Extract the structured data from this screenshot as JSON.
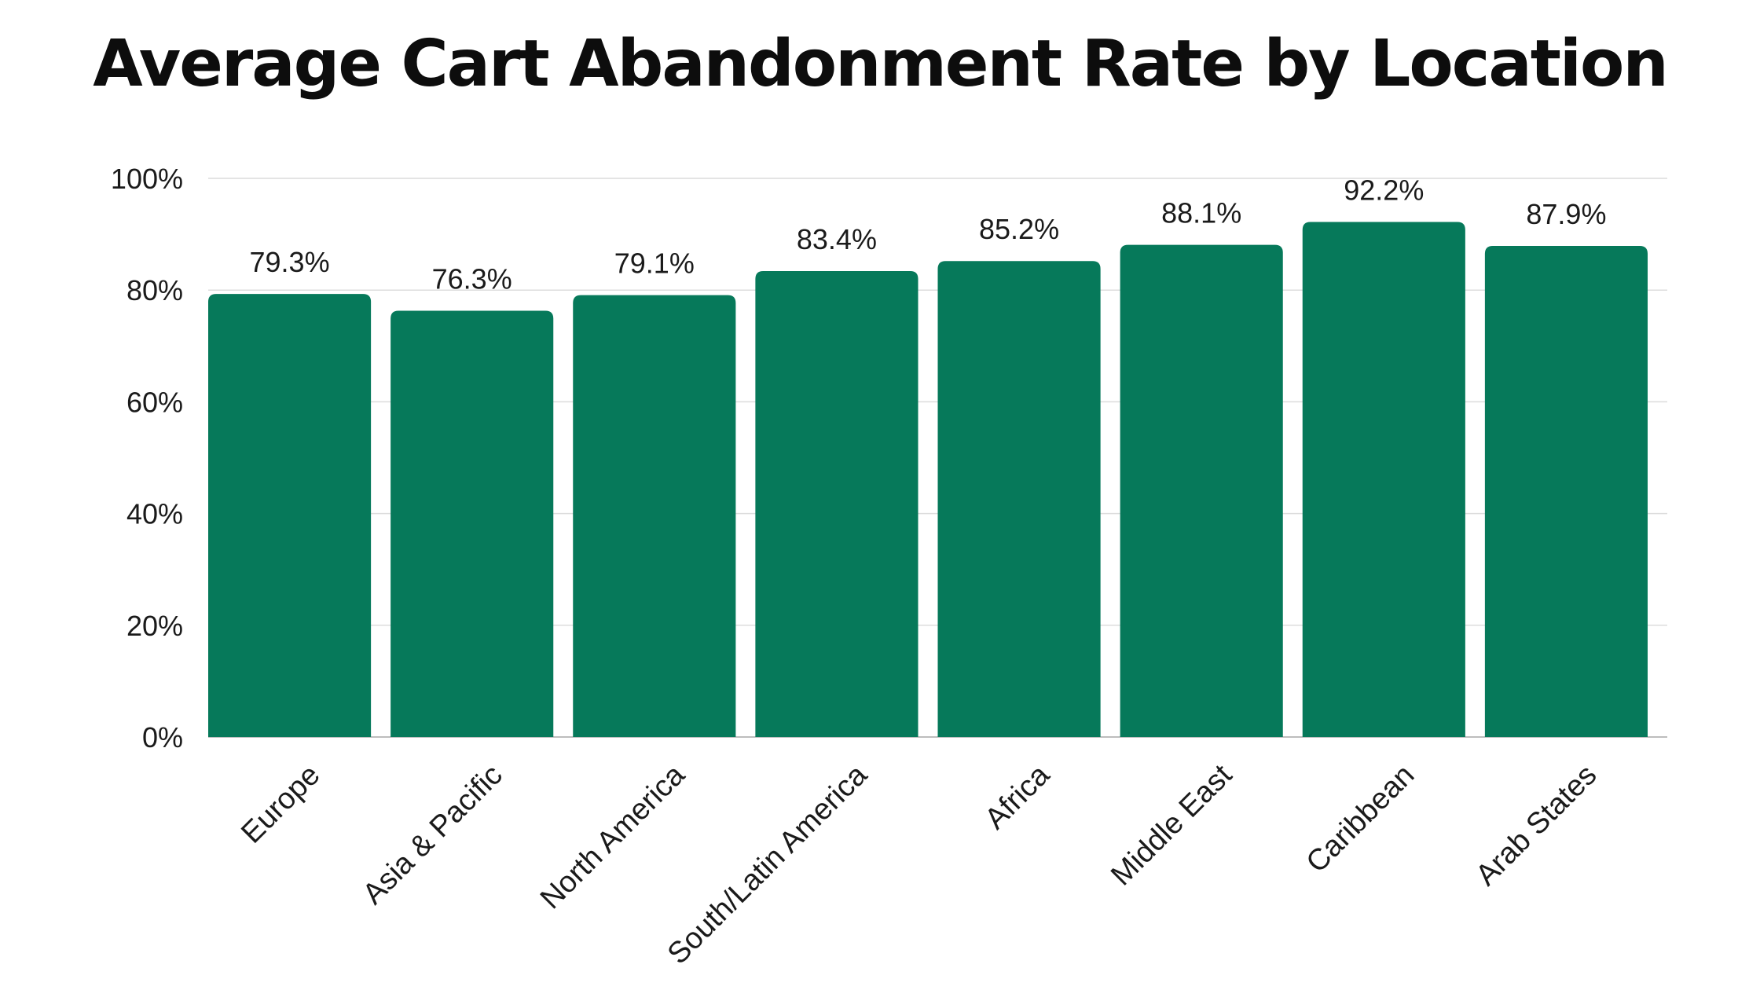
{
  "chart_data": {
    "type": "bar",
    "title": "Average Cart Abandonment Rate by Location",
    "categories": [
      "Europe",
      "Asia & Pacific",
      "North America",
      "South/Latin America",
      "Africa",
      "Middle East",
      "Caribbean",
      "Arab States"
    ],
    "values": [
      79.3,
      76.3,
      79.1,
      83.4,
      85.2,
      88.1,
      92.2,
      87.9
    ],
    "data_labels": [
      "79.3%",
      "76.3%",
      "79.1%",
      "83.4%",
      "85.2%",
      "88.1%",
      "92.2%",
      "87.9%"
    ],
    "y_ticks": [
      0,
      20,
      40,
      60,
      80,
      100
    ],
    "y_tick_labels": [
      "0%",
      "20%",
      "40%",
      "60%",
      "80%",
      "100%"
    ],
    "ylim": [
      0,
      100
    ],
    "xlabel": "",
    "ylabel": "",
    "grid": true,
    "legend": "none",
    "colors": {
      "bar": "#06795a",
      "grid": "#dcdcdc",
      "axis": "#bdbdbd"
    }
  }
}
